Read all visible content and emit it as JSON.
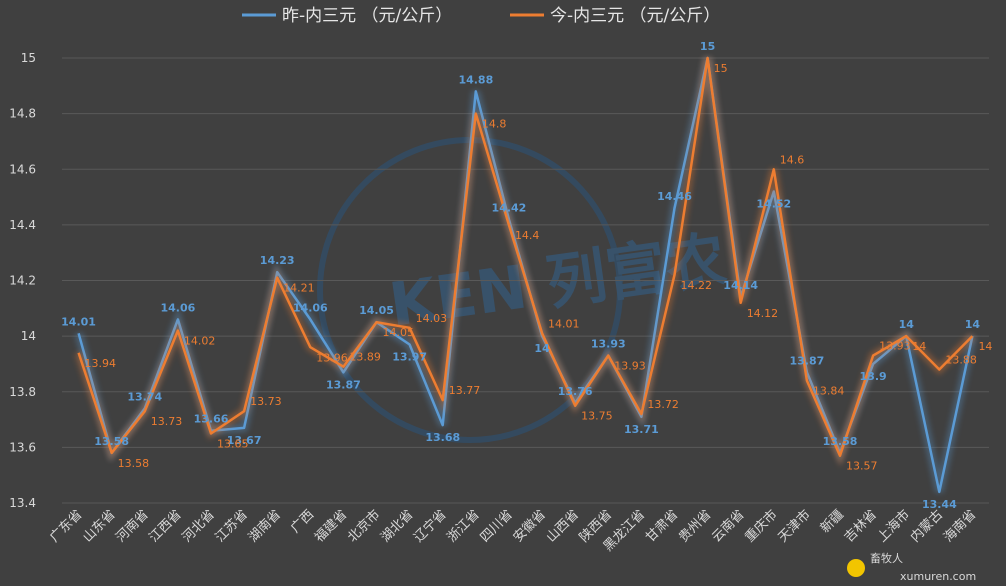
{
  "chart_data": {
    "type": "line",
    "categories": [
      "广东省",
      "山东省",
      "河南省",
      "江西省",
      "河北省",
      "江苏省",
      "湖南省",
      "广西",
      "福建省",
      "北京市",
      "湖北省",
      "辽宁省",
      "浙江省",
      "四川省",
      "安徽省",
      "山西省",
      "陕西省",
      "黑龙江省",
      "甘肃省",
      "贵州省",
      "云南省",
      "重庆市",
      "天津市",
      "新疆",
      "吉林省",
      "上海市",
      "内蒙古",
      "海南省"
    ],
    "series": [
      {
        "name": "昨-内三元  （元/公斤）",
        "color": "#5b9bd5",
        "values": [
          14.01,
          13.58,
          13.74,
          14.06,
          13.66,
          13.67,
          14.23,
          14.06,
          13.87,
          14.05,
          13.97,
          13.68,
          14.88,
          14.42,
          14.0,
          13.76,
          13.93,
          13.71,
          14.46,
          15.0,
          14.14,
          14.52,
          13.87,
          13.58,
          13.9,
          14.0,
          13.44,
          14.0
        ],
        "labels": [
          "14.01",
          "13.58",
          "13.74",
          "14.06",
          "13.66",
          "13.67",
          "14.23",
          "14.06",
          "13.87",
          "14.05",
          "13.97",
          "13.68",
          "14.88",
          "14.42",
          "14",
          "13.76",
          "13.93",
          "13.71",
          "14.46",
          "15",
          "14.14",
          "14.52",
          "13.87",
          "13.58",
          "13.9",
          "14",
          "13.44",
          "14"
        ]
      },
      {
        "name": "今-内三元  （元/公斤）",
        "color": "#ed7d31",
        "values": [
          13.94,
          13.58,
          13.73,
          14.02,
          13.65,
          13.73,
          14.21,
          13.96,
          13.89,
          14.05,
          14.03,
          13.77,
          14.8,
          14.4,
          14.01,
          13.75,
          13.93,
          13.72,
          14.22,
          15.0,
          14.12,
          14.6,
          13.84,
          13.57,
          13.93,
          14.0,
          13.88,
          14.0
        ],
        "labels": [
          "13.94",
          "13.58",
          "13.73",
          "14.02",
          "13.65",
          "13.73",
          "14.21",
          "13.96",
          "13.89",
          "14.05",
          "14.03",
          "13.77",
          "14.8",
          "14.4",
          "14.01",
          "13.75",
          "13.93",
          "13.72",
          "14.22",
          "15",
          "14.12",
          "14.6",
          "13.84",
          "13.57",
          "13.93",
          "14",
          "13.88",
          "14"
        ]
      }
    ],
    "ylim": [
      13.4,
      15.0
    ],
    "yticks": [
      "13.4",
      "13.6",
      "13.8",
      "14",
      "14.2",
      "14.4",
      "14.6",
      "14.8",
      "15"
    ],
    "grid": true,
    "legend": "top-center"
  },
  "watermark": {
    "brand": "KEN 列富农",
    "site": "xumuren.com",
    "site_name": "畜牧人"
  }
}
